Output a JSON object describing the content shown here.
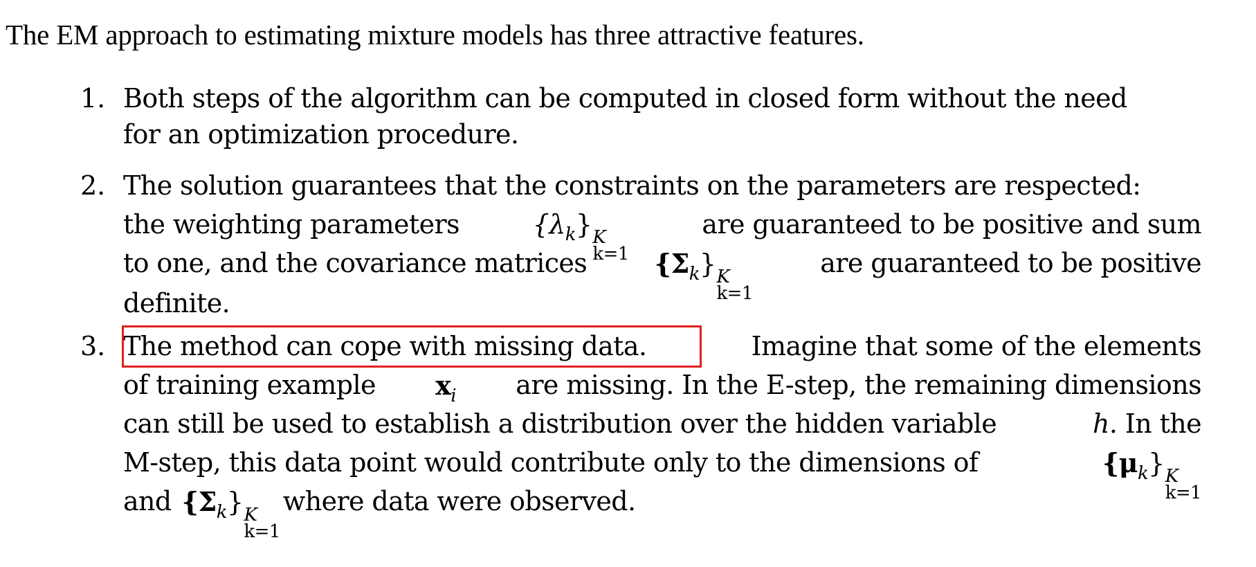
{
  "intro": "The EM approach to estimating mixture models has three attractive features.",
  "items": [
    {
      "number": "1.",
      "lines": [
        "Both steps of the algorithm can be computed in closed form without the need",
        "for an optimization procedure."
      ]
    },
    {
      "number": "2.",
      "lines": [
        "The solution guarantees that the constraints on the parameters are respected:",
        "the weighting parameters",
        "are guaranteed to be positive and sum",
        "to one, and the covariance matrices",
        "are guaranteed to be positive",
        "definite."
      ],
      "math_lambda": "{λ",
      "math_sigma": "{Σ",
      "math_sub_k": "k",
      "math_close": "}",
      "math_sup_K": "K",
      "math_sub_k1": "k=1"
    },
    {
      "number": "3.",
      "highlighted": "The method can cope with missing data.",
      "lines": [
        "Imagine that some of the elements",
        "of training example",
        "are missing. In the E-step, the remaining dimensions",
        "can still be used to establish a distribution over the hidden variable",
        ". In the",
        "M-step, this data point would contribute only to the dimensions of",
        "and",
        "where data were observed."
      ],
      "math_x": "x",
      "math_i": "i",
      "math_h": "h",
      "math_mu": "{μ",
      "math_sigma": "{Σ",
      "math_sub_k": "k",
      "math_close": "}",
      "math_sup_K": "K",
      "math_sub_k1": "k=1"
    }
  ],
  "annotation": {
    "box_color": "#e02020"
  }
}
